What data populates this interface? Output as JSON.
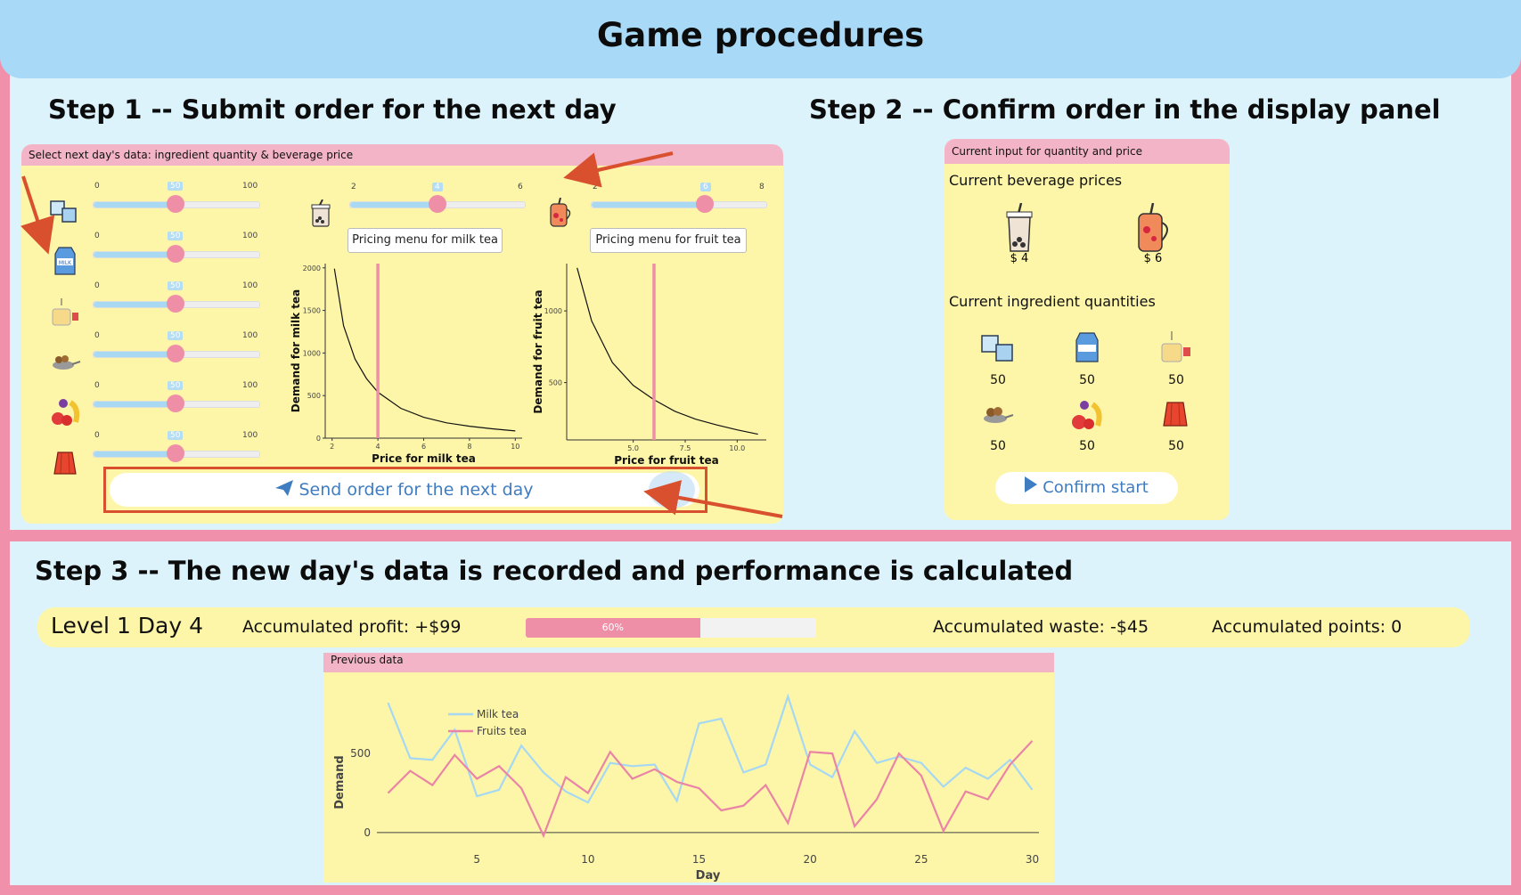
{
  "header": {
    "title": "Game procedures"
  },
  "step1": {
    "heading": "Step 1 -- Submit order for the next day",
    "panel_title": "Select next day's data: ingredient quantity & beverage price",
    "ingredient_sliders": [
      {
        "icon": "ice-cubes-icon",
        "min": "0",
        "value": "50",
        "max": "100"
      },
      {
        "icon": "milk-carton-icon",
        "min": "0",
        "value": "50",
        "max": "100"
      },
      {
        "icon": "tea-bag-icon",
        "min": "0",
        "value": "50",
        "max": "100"
      },
      {
        "icon": "tapioca-pearls-icon",
        "min": "0",
        "value": "50",
        "max": "100"
      },
      {
        "icon": "fruits-icon",
        "min": "0",
        "value": "50",
        "max": "100"
      },
      {
        "icon": "jelly-icon",
        "min": "0",
        "value": "50",
        "max": "100"
      }
    ],
    "milk_tea_price": {
      "min": "2",
      "value": "4",
      "max": "6",
      "menu_button": "Pricing menu for milk tea"
    },
    "fruit_tea_price": {
      "min": "2",
      "value": "6",
      "max": "8",
      "menu_button": "Pricing menu for fruit tea"
    },
    "send_button": "Send order for the next day"
  },
  "step2": {
    "heading": "Step 2 -- Confirm order in the display panel",
    "panel_title": "Current input for quantity and price",
    "prices_heading": "Current beverage prices",
    "milk_tea_price": "$ 4",
    "fruit_tea_price": "$ 6",
    "quantities_heading": "Current ingredient quantities",
    "quantities": [
      "50",
      "50",
      "50",
      "50",
      "50",
      "50"
    ],
    "confirm_button": "Confirm start"
  },
  "step3": {
    "heading": "Step 3 -- The new day's  data is recorded and performance is calculated",
    "level_day": "Level 1 Day 4",
    "profit": "Accumulated profit: +$99",
    "progress_label": "60%",
    "progress_value": 60,
    "waste": "Accumulated waste: -$45",
    "points": "Accumulated points: 0",
    "previous_panel_title": "Previous data"
  },
  "colors": {
    "pink": "#ee8fa7",
    "blue": "#a8d9f7",
    "yellow": "#fdf6a8",
    "arrow": "#d9502f"
  },
  "chart_data": [
    {
      "type": "line",
      "title": "",
      "xlabel": "Price for milk tea",
      "ylabel": "Demand for milk tea",
      "xticks": [
        "2",
        "4",
        "6",
        "8",
        "10"
      ],
      "yticks": [
        "0",
        "500",
        "1000",
        "1500",
        "2000"
      ],
      "xlim": [
        1.7,
        10.3
      ],
      "ylim": [
        0,
        2050
      ],
      "x": [
        2.1,
        2.5,
        3,
        3.5,
        4,
        5,
        6,
        7,
        8,
        9,
        10
      ],
      "y": [
        1990,
        1320,
        930,
        700,
        540,
        350,
        245,
        180,
        140,
        110,
        85
      ],
      "marker_x": 4
    },
    {
      "type": "line",
      "title": "",
      "xlabel": "Price for fruit tea",
      "ylabel": "Demand for fruit tea",
      "xticks": [
        "5.0",
        "7.5",
        "10.0"
      ],
      "yticks": [
        "500",
        "1000"
      ],
      "xlim": [
        1.8,
        11.4
      ],
      "ylim": [
        100,
        1330
      ],
      "x": [
        2.3,
        3,
        4,
        5,
        6,
        7,
        8,
        9,
        10,
        11
      ],
      "y": [
        1300,
        930,
        640,
        480,
        380,
        300,
        245,
        205,
        170,
        140
      ],
      "marker_x": 6
    },
    {
      "type": "line",
      "title": "",
      "xlabel": "Day",
      "ylabel": "Demand",
      "xlim": [
        0.5,
        30.3
      ],
      "ylim": [
        -40,
        900
      ],
      "xticks": [
        "5",
        "10",
        "15",
        "20",
        "25",
        "30"
      ],
      "yticks": [
        "0",
        "500"
      ],
      "series": [
        {
          "name": "Milk tea",
          "color": "#a6d8f3",
          "x": [
            1,
            2,
            3,
            4,
            5,
            6,
            7,
            8,
            9,
            10,
            11,
            12,
            13,
            14,
            15,
            16,
            17,
            18,
            19,
            20,
            21,
            22,
            23,
            24,
            25,
            26,
            27,
            28,
            29,
            30
          ],
          "y": [
            820,
            470,
            460,
            650,
            230,
            270,
            550,
            380,
            260,
            190,
            440,
            420,
            430,
            200,
            690,
            720,
            380,
            430,
            860,
            430,
            350,
            640,
            440,
            480,
            440,
            290,
            410,
            340,
            460,
            270
          ]
        },
        {
          "name": "Fruits tea",
          "color": "#ea84a6",
          "x": [
            1,
            2,
            3,
            4,
            5,
            6,
            7,
            8,
            9,
            10,
            11,
            12,
            13,
            14,
            15,
            16,
            17,
            18,
            19,
            20,
            21,
            22,
            23,
            24,
            25,
            26,
            27,
            28,
            29,
            30
          ],
          "y": [
            250,
            390,
            300,
            490,
            340,
            420,
            280,
            -20,
            350,
            250,
            510,
            340,
            400,
            320,
            280,
            140,
            170,
            300,
            60,
            510,
            500,
            40,
            210,
            500,
            360,
            10,
            260,
            210,
            430,
            580
          ]
        }
      ]
    }
  ]
}
